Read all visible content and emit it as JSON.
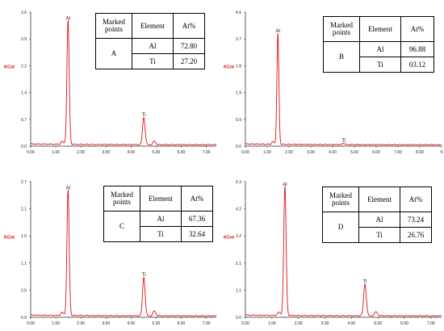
{
  "chart_data": [
    {
      "type": "line",
      "ylabel": "KCnt",
      "xlim": [
        0,
        7.4
      ],
      "ylim": [
        0,
        4.0
      ],
      "x_ticks": [
        "0.00",
        "1.00",
        "2.00",
        "3.00",
        "4.00",
        "5.00",
        "6.00",
        "7.00"
      ],
      "y_ticks": [
        "0.0",
        "0.7",
        "1.4",
        "2.2",
        "2.9",
        "3.6"
      ],
      "peaks": [
        {
          "label": "Al",
          "x": 1.49,
          "y": 3.7
        },
        {
          "label": "Ti",
          "x": 4.51,
          "y": 0.82
        }
      ],
      "table": {
        "headers": [
          "Marked points",
          "Element",
          "At%"
        ],
        "point": "A",
        "rows": [
          {
            "element": "Al",
            "at": "72.80"
          },
          {
            "element": "Ti",
            "at": "27.20"
          }
        ]
      }
    },
    {
      "type": "line",
      "ylabel": "KCnt",
      "xlim": [
        0,
        9
      ],
      "ylim": [
        0,
        4.6
      ],
      "x_ticks": [
        "0.00",
        "1.00",
        "2.00",
        "3.00",
        "4.00",
        "5.00",
        "6.00",
        "7.00",
        "8.00",
        "9"
      ],
      "y_ticks": [
        "0.0",
        "0.9",
        "1.9",
        "2.8",
        "3.7",
        "4.6"
      ],
      "peaks": [
        {
          "label": "Al",
          "x": 1.49,
          "y": 3.82
        },
        {
          "label": "Ti",
          "x": 4.51,
          "y": 0.05
        }
      ],
      "table": {
        "headers": [
          "Marked points",
          "Element",
          "At%"
        ],
        "point": "B",
        "rows": [
          {
            "element": "Al",
            "at": "96.88"
          },
          {
            "element": "Ti",
            "at": "03.12"
          }
        ]
      }
    },
    {
      "type": "line",
      "ylabel": "KCnt",
      "xlim": [
        0,
        7.4
      ],
      "ylim": [
        0,
        2.7
      ],
      "x_ticks": [
        "0.00",
        "1.00",
        "2.00",
        "3.00",
        "4.00",
        "5.00",
        "6.00",
        "7.00"
      ],
      "y_ticks": [
        "0.0",
        "0.5",
        "1.1",
        "1.6",
        "2.1",
        "2.7"
      ],
      "peaks": [
        {
          "label": "Al",
          "x": 1.49,
          "y": 2.5
        },
        {
          "label": "Ti",
          "x": 4.51,
          "y": 0.77
        }
      ],
      "table": {
        "headers": [
          "Marked points",
          "Element",
          "At%"
        ],
        "point": "C",
        "rows": [
          {
            "element": "Al",
            "at": "67.36"
          },
          {
            "element": "Ti",
            "at": "32.64"
          }
        ]
      }
    },
    {
      "type": "line",
      "ylabel": "KCnt",
      "xlim": [
        0,
        7.4
      ],
      "ylim": [
        0,
        5.3
      ],
      "x_ticks": [
        "0.00",
        "1.00",
        "2.00",
        "3.00",
        "4.00",
        "5.00",
        "6.00",
        "7.00"
      ],
      "y_ticks": [
        "0.0",
        "1.1",
        "2.1",
        "3.2",
        "4.2",
        "5.3"
      ],
      "peaks": [
        {
          "label": "Al",
          "x": 1.49,
          "y": 5.05
        },
        {
          "label": "Ti",
          "x": 4.51,
          "y": 1.25
        }
      ],
      "table": {
        "headers": [
          "Marked points",
          "Element",
          "At%"
        ],
        "point": "D",
        "rows": [
          {
            "element": "Al",
            "at": "73.24"
          },
          {
            "element": "Ti",
            "at": "26.76"
          }
        ]
      }
    }
  ]
}
